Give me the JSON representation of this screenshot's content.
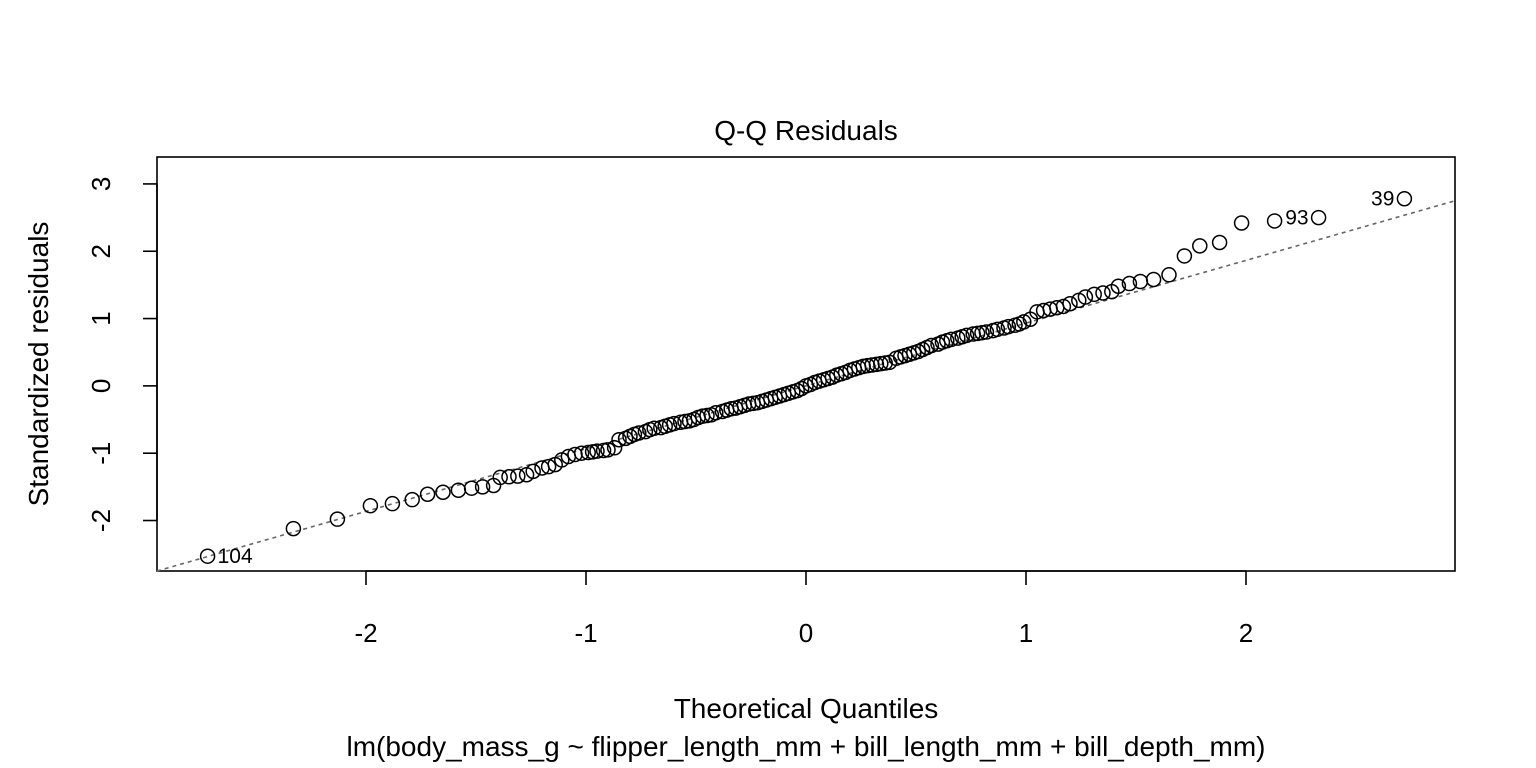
{
  "chart_data": {
    "type": "scatter",
    "title": "Q-Q Residuals",
    "xlabel": "Theoretical Quantiles",
    "ylabel": "Standardized residuals",
    "caption": "lm(body_mass_g ~ flipper_length_mm + bill_length_mm + bill_depth_mm)",
    "xlim": [
      -2.95,
      2.95
    ],
    "ylim": [
      -2.75,
      3.4
    ],
    "x_ticks": [
      -2,
      -1,
      0,
      1,
      2
    ],
    "y_ticks": [
      -2,
      -1,
      0,
      1,
      2,
      3
    ],
    "x_tick_labels": [
      "-2",
      "-1",
      "0",
      "1",
      "2"
    ],
    "y_tick_labels": [
      "-2",
      "-1",
      "0",
      "1",
      "2",
      "3"
    ],
    "grid": false,
    "reference_line": {
      "style": "dashed",
      "color": "#666666",
      "x": [
        -2.95,
        2.95
      ],
      "y": [
        -2.75,
        2.75
      ]
    },
    "highlighted_points": [
      {
        "label": "104",
        "x": -2.72,
        "y": -2.53,
        "side": "right"
      },
      {
        "label": "93",
        "x": 2.33,
        "y": 2.5,
        "side": "left"
      },
      {
        "label": "39",
        "x": 2.72,
        "y": 2.78,
        "side": "left"
      }
    ],
    "points": {
      "x": [
        -2.72,
        -2.33,
        -2.13,
        -1.98,
        -1.88,
        -1.79,
        -1.72,
        -1.65,
        -1.58,
        -1.52,
        -1.47,
        -1.42,
        -1.39,
        -1.35,
        -1.31,
        -1.27,
        -1.24,
        -1.2,
        -1.17,
        -1.14,
        -1.11,
        -1.08,
        -1.05,
        -1.02,
        -0.99,
        -0.97,
        -0.95,
        -0.92,
        -0.9,
        -0.87,
        -0.85,
        -0.82,
        -0.8,
        -0.78,
        -0.76,
        -0.73,
        -0.71,
        -0.69,
        -0.66,
        -0.64,
        -0.62,
        -0.6,
        -0.57,
        -0.55,
        -0.53,
        -0.51,
        -0.49,
        -0.47,
        -0.45,
        -0.43,
        -0.41,
        -0.38,
        -0.36,
        -0.34,
        -0.32,
        -0.3,
        -0.28,
        -0.26,
        -0.24,
        -0.22,
        -0.2,
        -0.18,
        -0.16,
        -0.14,
        -0.12,
        -0.1,
        -0.08,
        -0.06,
        -0.04,
        -0.02,
        0.0,
        0.02,
        0.04,
        0.06,
        0.08,
        0.1,
        0.12,
        0.14,
        0.16,
        0.18,
        0.2,
        0.22,
        0.24,
        0.26,
        0.28,
        0.3,
        0.32,
        0.34,
        0.36,
        0.38,
        0.41,
        0.43,
        0.45,
        0.47,
        0.49,
        0.51,
        0.53,
        0.55,
        0.57,
        0.6,
        0.62,
        0.64,
        0.66,
        0.69,
        0.71,
        0.73,
        0.76,
        0.78,
        0.8,
        0.82,
        0.85,
        0.87,
        0.9,
        0.92,
        0.95,
        0.97,
        0.99,
        1.02,
        1.05,
        1.08,
        1.11,
        1.14,
        1.17,
        1.2,
        1.24,
        1.27,
        1.31,
        1.35,
        1.39,
        1.42,
        1.47,
        1.52,
        1.58,
        1.65,
        1.72,
        1.79,
        1.88,
        1.98,
        2.13,
        2.33,
        2.72
      ],
      "y": [
        -2.53,
        -2.12,
        -1.98,
        -1.78,
        -1.75,
        -1.69,
        -1.61,
        -1.58,
        -1.55,
        -1.52,
        -1.5,
        -1.48,
        -1.36,
        -1.35,
        -1.34,
        -1.32,
        -1.27,
        -1.22,
        -1.2,
        -1.17,
        -1.1,
        -1.05,
        -1.02,
        -1.0,
        -0.99,
        -0.98,
        -0.97,
        -0.96,
        -0.95,
        -0.92,
        -0.8,
        -0.78,
        -0.75,
        -0.72,
        -0.7,
        -0.68,
        -0.65,
        -0.63,
        -0.62,
        -0.6,
        -0.58,
        -0.56,
        -0.54,
        -0.53,
        -0.52,
        -0.5,
        -0.47,
        -0.45,
        -0.44,
        -0.43,
        -0.4,
        -0.38,
        -0.36,
        -0.34,
        -0.33,
        -0.31,
        -0.29,
        -0.27,
        -0.26,
        -0.25,
        -0.23,
        -0.21,
        -0.19,
        -0.17,
        -0.15,
        -0.13,
        -0.11,
        -0.09,
        -0.07,
        -0.04,
        0.0,
        0.02,
        0.05,
        0.07,
        0.09,
        0.11,
        0.13,
        0.16,
        0.18,
        0.2,
        0.23,
        0.25,
        0.27,
        0.29,
        0.3,
        0.31,
        0.32,
        0.33,
        0.34,
        0.35,
        0.41,
        0.43,
        0.45,
        0.47,
        0.49,
        0.51,
        0.54,
        0.57,
        0.6,
        0.62,
        0.65,
        0.67,
        0.69,
        0.71,
        0.73,
        0.75,
        0.77,
        0.78,
        0.79,
        0.8,
        0.82,
        0.84,
        0.86,
        0.88,
        0.9,
        0.92,
        0.95,
        0.99,
        1.1,
        1.12,
        1.14,
        1.16,
        1.18,
        1.22,
        1.27,
        1.32,
        1.36,
        1.38,
        1.4,
        1.48,
        1.52,
        1.55,
        1.58,
        1.65,
        1.93,
        2.08,
        2.13,
        2.42,
        2.45,
        2.5,
        2.78
      ]
    }
  }
}
